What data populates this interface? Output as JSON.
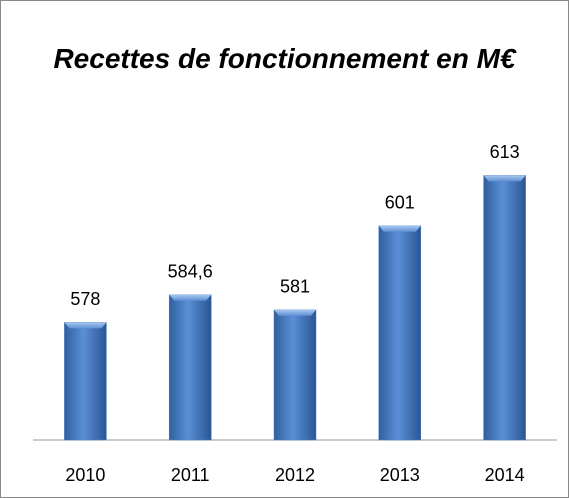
{
  "chart_data": {
    "type": "bar",
    "title": "Recettes de fonctionnement en M€",
    "categories": [
      "2010",
      "2011",
      "2012",
      "2013",
      "2014"
    ],
    "values": [
      578,
      584.6,
      581,
      601,
      613
    ],
    "value_labels": [
      "578",
      "584,6",
      "581",
      "601",
      "613"
    ],
    "color": "#4a7ebb",
    "ylim": [
      550,
      620
    ]
  }
}
